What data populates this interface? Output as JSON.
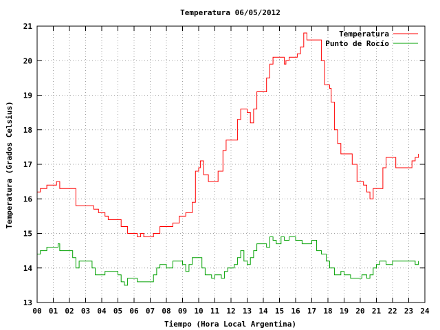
{
  "chart_data": {
    "type": "line",
    "title": "Temperatura 06/05/2012",
    "xlabel": "Tiempo (Hora Local Argentina)",
    "ylabel": "Temperatura (Grados Celsius)",
    "xlim": [
      0,
      24
    ],
    "ylim": [
      13,
      21
    ],
    "x_ticks": [
      "00",
      "01",
      "02",
      "03",
      "04",
      "05",
      "06",
      "07",
      "08",
      "09",
      "10",
      "11",
      "12",
      "13",
      "14",
      "15",
      "16",
      "17",
      "18",
      "19",
      "20",
      "21",
      "22",
      "23",
      "24"
    ],
    "y_ticks": [
      "13",
      "14",
      "15",
      "16",
      "17",
      "18",
      "19",
      "20",
      "21"
    ],
    "grid": true,
    "legend_position": "top-right",
    "series": [
      {
        "name": "Temperatura",
        "color": "#ff0000",
        "points": [
          [
            0.0,
            16.2
          ],
          [
            0.2,
            16.3
          ],
          [
            0.6,
            16.4
          ],
          [
            1.0,
            16.4
          ],
          [
            1.2,
            16.5
          ],
          [
            1.4,
            16.3
          ],
          [
            2.0,
            16.3
          ],
          [
            2.4,
            15.8
          ],
          [
            3.2,
            15.8
          ],
          [
            3.5,
            15.7
          ],
          [
            3.8,
            15.6
          ],
          [
            4.2,
            15.5
          ],
          [
            4.4,
            15.4
          ],
          [
            5.0,
            15.4
          ],
          [
            5.2,
            15.2
          ],
          [
            5.6,
            15.0
          ],
          [
            6.0,
            15.0
          ],
          [
            6.2,
            14.9
          ],
          [
            6.4,
            15.0
          ],
          [
            6.6,
            14.9
          ],
          [
            7.0,
            14.9
          ],
          [
            7.2,
            15.0
          ],
          [
            7.6,
            15.2
          ],
          [
            8.2,
            15.2
          ],
          [
            8.4,
            15.3
          ],
          [
            8.8,
            15.5
          ],
          [
            9.2,
            15.6
          ],
          [
            9.6,
            15.9
          ],
          [
            9.8,
            16.8
          ],
          [
            10.0,
            16.9
          ],
          [
            10.1,
            17.1
          ],
          [
            10.3,
            16.7
          ],
          [
            10.6,
            16.5
          ],
          [
            11.0,
            16.5
          ],
          [
            11.2,
            16.8
          ],
          [
            11.5,
            17.4
          ],
          [
            11.7,
            17.7
          ],
          [
            12.1,
            17.7
          ],
          [
            12.4,
            18.3
          ],
          [
            12.6,
            18.6
          ],
          [
            13.0,
            18.5
          ],
          [
            13.2,
            18.2
          ],
          [
            13.4,
            18.6
          ],
          [
            13.6,
            19.1
          ],
          [
            14.0,
            19.1
          ],
          [
            14.2,
            19.5
          ],
          [
            14.4,
            19.9
          ],
          [
            14.6,
            20.1
          ],
          [
            15.1,
            20.1
          ],
          [
            15.3,
            19.9
          ],
          [
            15.4,
            20.0
          ],
          [
            15.6,
            20.1
          ],
          [
            16.1,
            20.2
          ],
          [
            16.3,
            20.4
          ],
          [
            16.5,
            20.8
          ],
          [
            16.7,
            20.6
          ],
          [
            17.3,
            20.6
          ],
          [
            17.6,
            20.0
          ],
          [
            17.8,
            19.3
          ],
          [
            18.1,
            19.2
          ],
          [
            18.2,
            18.8
          ],
          [
            18.4,
            18.0
          ],
          [
            18.6,
            17.6
          ],
          [
            18.8,
            17.3
          ],
          [
            19.3,
            17.3
          ],
          [
            19.5,
            17.0
          ],
          [
            19.8,
            16.5
          ],
          [
            20.2,
            16.4
          ],
          [
            20.4,
            16.2
          ],
          [
            20.6,
            16.0
          ],
          [
            20.8,
            16.3
          ],
          [
            21.2,
            16.3
          ],
          [
            21.4,
            16.9
          ],
          [
            21.6,
            17.2
          ],
          [
            22.1,
            17.2
          ],
          [
            22.2,
            16.9
          ],
          [
            22.6,
            16.9
          ],
          [
            23.0,
            16.9
          ],
          [
            23.2,
            17.1
          ],
          [
            23.4,
            17.2
          ],
          [
            23.6,
            17.3
          ]
        ]
      },
      {
        "name": "Punto de Rocío",
        "color": "#00a000",
        "points": [
          [
            0.0,
            14.4
          ],
          [
            0.2,
            14.5
          ],
          [
            0.6,
            14.6
          ],
          [
            1.0,
            14.6
          ],
          [
            1.3,
            14.7
          ],
          [
            1.4,
            14.5
          ],
          [
            2.0,
            14.5
          ],
          [
            2.2,
            14.3
          ],
          [
            2.4,
            14.0
          ],
          [
            2.6,
            14.2
          ],
          [
            3.2,
            14.2
          ],
          [
            3.4,
            14.0
          ],
          [
            3.6,
            13.8
          ],
          [
            4.0,
            13.8
          ],
          [
            4.2,
            13.9
          ],
          [
            4.6,
            13.9
          ],
          [
            4.9,
            13.9
          ],
          [
            5.0,
            13.8
          ],
          [
            5.2,
            13.6
          ],
          [
            5.4,
            13.5
          ],
          [
            5.6,
            13.7
          ],
          [
            6.0,
            13.7
          ],
          [
            6.2,
            13.6
          ],
          [
            7.0,
            13.6
          ],
          [
            7.2,
            13.8
          ],
          [
            7.4,
            14.0
          ],
          [
            7.6,
            14.1
          ],
          [
            8.0,
            14.0
          ],
          [
            8.4,
            14.2
          ],
          [
            8.8,
            14.2
          ],
          [
            9.0,
            14.1
          ],
          [
            9.2,
            13.9
          ],
          [
            9.4,
            14.1
          ],
          [
            9.6,
            14.3
          ],
          [
            10.0,
            14.3
          ],
          [
            10.2,
            14.0
          ],
          [
            10.4,
            13.8
          ],
          [
            10.8,
            13.7
          ],
          [
            11.0,
            13.8
          ],
          [
            11.4,
            13.7
          ],
          [
            11.6,
            13.9
          ],
          [
            11.8,
            14.0
          ],
          [
            12.2,
            14.1
          ],
          [
            12.4,
            14.3
          ],
          [
            12.6,
            14.5
          ],
          [
            12.8,
            14.2
          ],
          [
            13.0,
            14.1
          ],
          [
            13.2,
            14.3
          ],
          [
            13.4,
            14.5
          ],
          [
            13.6,
            14.7
          ],
          [
            14.0,
            14.7
          ],
          [
            14.2,
            14.6
          ],
          [
            14.4,
            14.9
          ],
          [
            14.6,
            14.8
          ],
          [
            14.8,
            14.7
          ],
          [
            15.1,
            14.9
          ],
          [
            15.3,
            14.8
          ],
          [
            15.6,
            14.9
          ],
          [
            16.0,
            14.8
          ],
          [
            16.4,
            14.7
          ],
          [
            16.8,
            14.7
          ],
          [
            17.0,
            14.8
          ],
          [
            17.3,
            14.5
          ],
          [
            17.6,
            14.4
          ],
          [
            17.9,
            14.2
          ],
          [
            18.1,
            14.0
          ],
          [
            18.4,
            13.8
          ],
          [
            18.8,
            13.9
          ],
          [
            19.0,
            13.8
          ],
          [
            19.4,
            13.7
          ],
          [
            19.8,
            13.7
          ],
          [
            20.1,
            13.8
          ],
          [
            20.4,
            13.7
          ],
          [
            20.6,
            13.8
          ],
          [
            20.8,
            14.0
          ],
          [
            21.0,
            14.1
          ],
          [
            21.2,
            14.2
          ],
          [
            21.6,
            14.1
          ],
          [
            22.0,
            14.2
          ],
          [
            22.6,
            14.2
          ],
          [
            23.0,
            14.2
          ],
          [
            23.4,
            14.1
          ],
          [
            23.6,
            14.2
          ]
        ]
      }
    ]
  }
}
